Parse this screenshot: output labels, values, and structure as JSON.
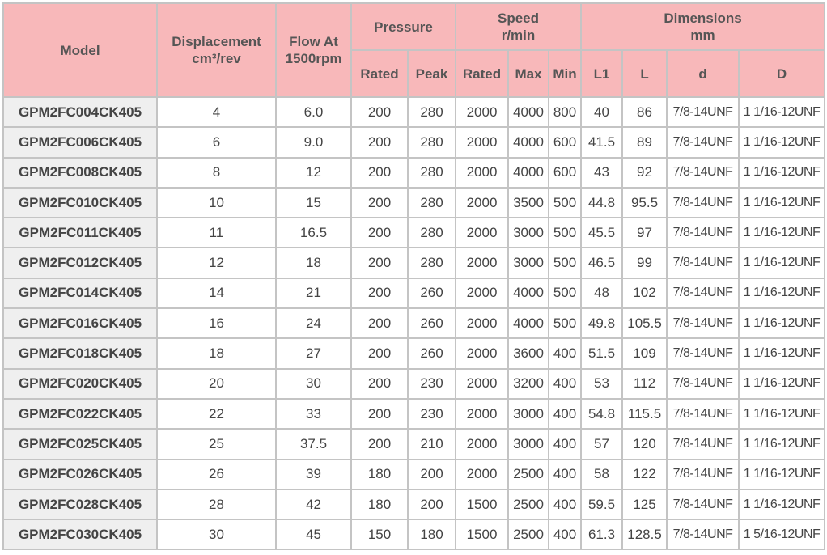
{
  "header": {
    "model": "Model",
    "displacement": [
      "Displacement",
      "cm³/rev"
    ],
    "flow": [
      "Flow At",
      "1500rpm"
    ],
    "pressure": "Pressure",
    "pressure_cols": [
      "Rated",
      "Peak"
    ],
    "speed": [
      "Speed",
      "r/min"
    ],
    "speed_cols": [
      "Rated",
      "Max",
      "Min"
    ],
    "dimensions": [
      "Dimensions",
      "mm"
    ],
    "dimension_cols": [
      "L1",
      "L",
      "d",
      "D"
    ]
  },
  "table": {
    "rows": [
      [
        "GPM2FC004CK405",
        "4",
        "6.0",
        "200",
        "280",
        "2000",
        "4000",
        "800",
        "40",
        "86",
        "7/8-14UNF",
        "1 1/16-12UNF"
      ],
      [
        "GPM2FC006CK405",
        "6",
        "9.0",
        "200",
        "280",
        "2000",
        "4000",
        "600",
        "41.5",
        "89",
        "7/8-14UNF",
        "1 1/16-12UNF"
      ],
      [
        "GPM2FC008CK405",
        "8",
        "12",
        "200",
        "280",
        "2000",
        "4000",
        "600",
        "43",
        "92",
        "7/8-14UNF",
        "1 1/16-12UNF"
      ],
      [
        "GPM2FC010CK405",
        "10",
        "15",
        "200",
        "280",
        "2000",
        "3500",
        "500",
        "44.8",
        "95.5",
        "7/8-14UNF",
        "1 1/16-12UNF"
      ],
      [
        "GPM2FC011CK405",
        "11",
        "16.5",
        "200",
        "280",
        "2000",
        "3000",
        "500",
        "45.5",
        "97",
        "7/8-14UNF",
        "1 1/16-12UNF"
      ],
      [
        "GPM2FC012CK405",
        "12",
        "18",
        "200",
        "280",
        "2000",
        "3000",
        "500",
        "46.5",
        "99",
        "7/8-14UNF",
        "1 1/16-12UNF"
      ],
      [
        "GPM2FC014CK405",
        "14",
        "21",
        "200",
        "260",
        "2000",
        "4000",
        "500",
        "48",
        "102",
        "7/8-14UNF",
        "1 1/16-12UNF"
      ],
      [
        "GPM2FC016CK405",
        "16",
        "24",
        "200",
        "260",
        "2000",
        "4000",
        "500",
        "49.8",
        "105.5",
        "7/8-14UNF",
        "1 1/16-12UNF"
      ],
      [
        "GPM2FC018CK405",
        "18",
        "27",
        "200",
        "260",
        "2000",
        "3600",
        "400",
        "51.5",
        "109",
        "7/8-14UNF",
        "1 1/16-12UNF"
      ],
      [
        "GPM2FC020CK405",
        "20",
        "30",
        "200",
        "230",
        "2000",
        "3200",
        "400",
        "53",
        "112",
        "7/8-14UNF",
        "1 1/16-12UNF"
      ],
      [
        "GPM2FC022CK405",
        "22",
        "33",
        "200",
        "230",
        "2000",
        "3000",
        "400",
        "54.8",
        "115.5",
        "7/8-14UNF",
        "1 1/16-12UNF"
      ],
      [
        "GPM2FC025CK405",
        "25",
        "37.5",
        "200",
        "210",
        "2000",
        "3000",
        "400",
        "57",
        "120",
        "7/8-14UNF",
        "1 1/16-12UNF"
      ],
      [
        "GPM2FC026CK405",
        "26",
        "39",
        "180",
        "200",
        "2000",
        "2500",
        "400",
        "58",
        "122",
        "7/8-14UNF",
        "1 1/16-12UNF"
      ],
      [
        "GPM2FC028CK405",
        "28",
        "42",
        "180",
        "200",
        "1500",
        "2500",
        "400",
        "59.5",
        "125",
        "7/8-14UNF",
        "1 1/16-12UNF"
      ],
      [
        "GPM2FC030CK405",
        "30",
        "45",
        "150",
        "180",
        "1500",
        "2500",
        "400",
        "61.3",
        "128.5",
        "7/8-14UNF",
        "1 5/16-12UNF"
      ]
    ]
  }
}
